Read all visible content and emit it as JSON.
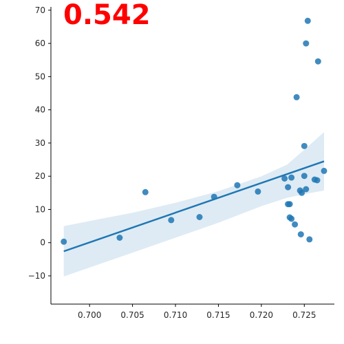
{
  "chart_data": {
    "type": "scatter",
    "title": "",
    "xlabel": "",
    "ylabel": "",
    "annotation": "0.542",
    "xlim": [
      0.6955,
      0.7285
    ],
    "ylim": [
      -18.5,
      71
    ],
    "x_ticks": [
      0.7,
      0.705,
      0.71,
      0.715,
      0.72,
      0.725
    ],
    "x_tick_labels": [
      "0.700",
      "0.705",
      "0.710",
      "0.715",
      "0.720",
      "0.725"
    ],
    "y_ticks": [
      -10,
      0,
      10,
      20,
      30,
      40,
      50,
      60,
      70
    ],
    "y_tick_labels": [
      "−10",
      "0",
      "10",
      "20",
      "30",
      "40",
      "50",
      "60",
      "70"
    ],
    "grid": false,
    "colors": {
      "points": "#1f77b4",
      "line": "#1f77b4",
      "band": "#1f77b4",
      "annotation": "#ff0000"
    },
    "points": [
      {
        "x": 0.697,
        "y": 0.3
      },
      {
        "x": 0.7035,
        "y": 1.5
      },
      {
        "x": 0.7065,
        "y": 15.2
      },
      {
        "x": 0.7095,
        "y": 6.8
      },
      {
        "x": 0.7128,
        "y": 7.7
      },
      {
        "x": 0.7145,
        "y": 13.8
      },
      {
        "x": 0.7172,
        "y": 17.3
      },
      {
        "x": 0.7196,
        "y": 15.4
      },
      {
        "x": 0.7227,
        "y": 19.3
      },
      {
        "x": 0.7231,
        "y": 16.7
      },
      {
        "x": 0.7231,
        "y": 11.6
      },
      {
        "x": 0.7233,
        "y": 11.6
      },
      {
        "x": 0.7233,
        "y": 7.6
      },
      {
        "x": 0.7235,
        "y": 7.2
      },
      {
        "x": 0.7235,
        "y": 19.6
      },
      {
        "x": 0.7239,
        "y": 5.5
      },
      {
        "x": 0.7241,
        "y": 43.8
      },
      {
        "x": 0.7245,
        "y": 15.7
      },
      {
        "x": 0.7246,
        "y": 2.5
      },
      {
        "x": 0.7247,
        "y": 15.0
      },
      {
        "x": 0.725,
        "y": 29.1
      },
      {
        "x": 0.725,
        "y": 20.1
      },
      {
        "x": 0.7252,
        "y": 16.1
      },
      {
        "x": 0.7252,
        "y": 60.0
      },
      {
        "x": 0.7254,
        "y": 66.8
      },
      {
        "x": 0.7256,
        "y": 1.0
      },
      {
        "x": 0.7262,
        "y": 19.0
      },
      {
        "x": 0.7265,
        "y": 18.8
      },
      {
        "x": 0.7266,
        "y": 54.6
      },
      {
        "x": 0.7273,
        "y": 21.6
      }
    ],
    "regression": {
      "x": [
        0.697,
        0.7273
      ],
      "y": [
        -2.6,
        24.5
      ]
    },
    "confidence_band": {
      "x": [
        0.697,
        0.7,
        0.705,
        0.71,
        0.715,
        0.72,
        0.723,
        0.725,
        0.7273
      ],
      "upper": [
        5.0,
        6.5,
        9.0,
        12.0,
        15.5,
        20.0,
        23.5,
        28.0,
        33.3
      ],
      "lower": [
        -10.2,
        -7.5,
        -3.0,
        1.5,
        6.0,
        11.0,
        13.5,
        14.6,
        15.7
      ]
    }
  }
}
